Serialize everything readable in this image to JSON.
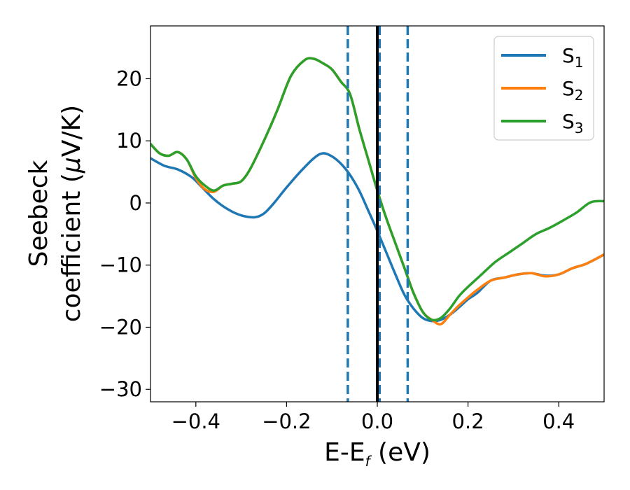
{
  "chart_data": {
    "type": "line",
    "xlabel": {
      "base": "E-E",
      "subscript": "f",
      "suffix": " (eV)"
    },
    "ylabel": {
      "line1": "Seebeck",
      "line2_prefix": "coefficient  (",
      "mu": "μ",
      "line2_suffix": "V/K)"
    },
    "xlim": [
      -0.5,
      0.5
    ],
    "ylim": [
      -32,
      28.5
    ],
    "x_ticks": [
      -0.4,
      -0.2,
      0.0,
      0.2,
      0.4
    ],
    "x_tick_labels": [
      "−0.4",
      "−0.2",
      "0.0",
      "0.2",
      "0.4"
    ],
    "y_ticks": [
      -30,
      -20,
      -10,
      0,
      10,
      20
    ],
    "y_tick_labels": [
      "−30",
      "−20",
      "−10",
      "0",
      "10",
      "20"
    ],
    "grid": false,
    "legend_position": "top-right",
    "series": [
      {
        "name": "S",
        "subscript": "1",
        "color": "#1f77b4",
        "x": [
          -0.5,
          -0.47,
          -0.44,
          -0.41,
          -0.39,
          -0.36,
          -0.33,
          -0.3,
          -0.27,
          -0.25,
          -0.23,
          -0.2,
          -0.17,
          -0.14,
          -0.12,
          -0.1,
          -0.08,
          -0.06,
          -0.04,
          -0.02,
          0.0,
          0.02,
          0.04,
          0.06,
          0.08,
          0.1,
          0.12,
          0.14,
          0.16,
          0.18,
          0.2,
          0.22,
          0.25,
          0.28,
          0.31,
          0.34,
          0.37,
          0.4,
          0.43,
          0.46,
          0.5
        ],
        "y": [
          7.2,
          6.0,
          5.4,
          4.2,
          2.8,
          0.6,
          -1.0,
          -2.0,
          -2.3,
          -1.7,
          -0.2,
          2.5,
          5.0,
          7.2,
          8.0,
          7.5,
          6.3,
          4.5,
          2.0,
          -1.2,
          -4.5,
          -8.0,
          -11.5,
          -14.8,
          -17.0,
          -18.5,
          -19.0,
          -18.8,
          -18.0,
          -16.8,
          -15.5,
          -14.5,
          -12.5,
          -12.0,
          -11.5,
          -11.3,
          -11.7,
          -11.5,
          -10.5,
          -9.8,
          -8.3
        ]
      },
      {
        "name": "S",
        "subscript": "2",
        "color": "#ff7f0e",
        "x": [
          -0.5,
          -0.48,
          -0.46,
          -0.44,
          -0.42,
          -0.4,
          -0.38,
          -0.36,
          -0.34,
          -0.32,
          -0.3,
          -0.28,
          -0.25,
          -0.22,
          -0.19,
          -0.16,
          -0.14,
          -0.12,
          -0.1,
          -0.08,
          -0.06,
          -0.04,
          -0.02,
          0.0,
          0.02,
          0.04,
          0.06,
          0.08,
          0.1,
          0.12,
          0.14,
          0.16,
          0.18,
          0.2,
          0.22,
          0.25,
          0.28,
          0.31,
          0.34,
          0.37,
          0.4,
          0.43,
          0.46,
          0.5
        ],
        "y": [
          9.5,
          8.0,
          7.6,
          8.2,
          7.0,
          4.0,
          2.2,
          1.8,
          2.8,
          3.1,
          3.5,
          5.5,
          10.0,
          15.0,
          20.5,
          23.0,
          23.2,
          22.5,
          21.5,
          19.5,
          17.5,
          12.0,
          7.0,
          2.0,
          -2.5,
          -6.5,
          -10.5,
          -14.5,
          -17.5,
          -18.8,
          -19.5,
          -18.0,
          -16.5,
          -15.2,
          -14.0,
          -12.5,
          -12.0,
          -11.5,
          -11.3,
          -11.8,
          -11.5,
          -10.5,
          -9.8,
          -8.3
        ]
      },
      {
        "name": "S",
        "subscript": "3",
        "color": "#2ca02c",
        "x": [
          -0.5,
          -0.48,
          -0.46,
          -0.44,
          -0.42,
          -0.4,
          -0.38,
          -0.36,
          -0.34,
          -0.32,
          -0.3,
          -0.28,
          -0.25,
          -0.22,
          -0.19,
          -0.16,
          -0.14,
          -0.12,
          -0.1,
          -0.08,
          -0.06,
          -0.04,
          -0.02,
          0.0,
          0.02,
          0.04,
          0.06,
          0.08,
          0.1,
          0.12,
          0.14,
          0.16,
          0.18,
          0.2,
          0.23,
          0.26,
          0.29,
          0.32,
          0.35,
          0.38,
          0.41,
          0.44,
          0.47,
          0.5
        ],
        "y": [
          9.5,
          8.0,
          7.6,
          8.2,
          7.0,
          4.3,
          2.8,
          2.0,
          2.8,
          3.1,
          3.5,
          5.5,
          10.0,
          15.0,
          20.5,
          23.0,
          23.2,
          22.5,
          21.5,
          19.5,
          17.5,
          12.0,
          7.0,
          2.0,
          -2.5,
          -6.5,
          -10.5,
          -14.5,
          -17.5,
          -18.8,
          -18.5,
          -17.0,
          -15.0,
          -13.5,
          -11.5,
          -9.5,
          -8.0,
          -6.5,
          -5.0,
          -4.0,
          -2.8,
          -1.5,
          0.1,
          0.3
        ]
      }
    ],
    "vlines": [
      {
        "x": -0.065,
        "style": "dashed",
        "color": "#1f77b4"
      },
      {
        "x": 0.005,
        "style": "dashed",
        "color": "#1f77b4"
      },
      {
        "x": 0.067,
        "style": "dashed",
        "color": "#1f77b4"
      },
      {
        "x": 0.0,
        "style": "solid",
        "color": "#000000"
      }
    ]
  }
}
